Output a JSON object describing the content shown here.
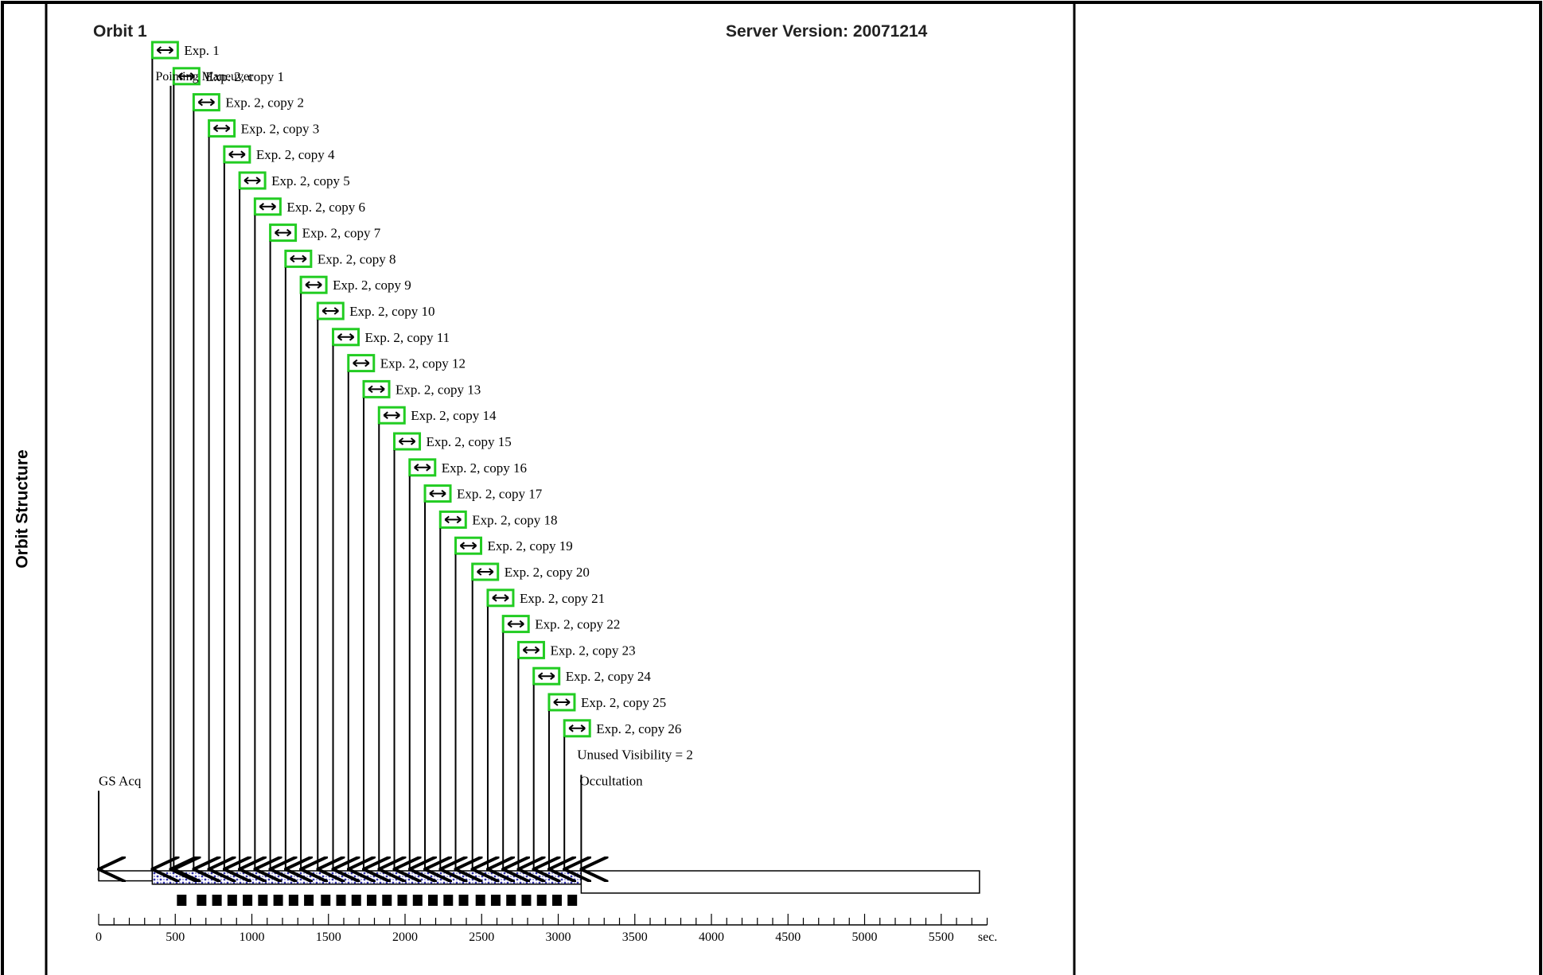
{
  "section_label": "Orbit Structure",
  "orbit_title": "Orbit 1",
  "server_version": "Server Version: 20071214",
  "timeline": {
    "axis_unit": "sec.",
    "axis_max": 5800,
    "ticks_major": [
      0,
      500,
      1000,
      1500,
      2000,
      2500,
      3000,
      3500,
      4000,
      4500,
      5000,
      5500
    ],
    "tick_minor_step": 100,
    "orbit_end": 5750,
    "events": [
      {
        "label": "GS Acq",
        "time": 0
      },
      {
        "label": "Occultation",
        "time": 3150
      }
    ],
    "pointing_maneuver": {
      "label": "Pointing Maneuver",
      "time": 470
    },
    "unused_visibility": "Unused Visibility = 2"
  },
  "exposures": [
    {
      "label": "Exp. 1",
      "start": 350
    },
    {
      "label": "Exp. 2, copy 1",
      "start": 490
    },
    {
      "label": "Exp. 2, copy 2",
      "start": 620
    },
    {
      "label": "Exp. 2, copy 3",
      "start": 720
    },
    {
      "label": "Exp. 2, copy 4",
      "start": 820
    },
    {
      "label": "Exp. 2, copy 5",
      "start": 920
    },
    {
      "label": "Exp. 2, copy 6",
      "start": 1020
    },
    {
      "label": "Exp. 2, copy 7",
      "start": 1120
    },
    {
      "label": "Exp. 2, copy 8",
      "start": 1220
    },
    {
      "label": "Exp. 2, copy 9",
      "start": 1320
    },
    {
      "label": "Exp. 2, copy 10",
      "start": 1430
    },
    {
      "label": "Exp. 2, copy 11",
      "start": 1530
    },
    {
      "label": "Exp. 2, copy 12",
      "start": 1630
    },
    {
      "label": "Exp. 2, copy 13",
      "start": 1730
    },
    {
      "label": "Exp. 2, copy 14",
      "start": 1830
    },
    {
      "label": "Exp. 2, copy 15",
      "start": 1930
    },
    {
      "label": "Exp. 2, copy 16",
      "start": 2030
    },
    {
      "label": "Exp. 2, copy 17",
      "start": 2130
    },
    {
      "label": "Exp. 2, copy 18",
      "start": 2230
    },
    {
      "label": "Exp. 2, copy 19",
      "start": 2330
    },
    {
      "label": "Exp. 2, copy 20",
      "start": 2440
    },
    {
      "label": "Exp. 2, copy 21",
      "start": 2540
    },
    {
      "label": "Exp. 2, copy 22",
      "start": 2640
    },
    {
      "label": "Exp. 2, copy 23",
      "start": 2740
    },
    {
      "label": "Exp. 2, copy 24",
      "start": 2840
    },
    {
      "label": "Exp. 2, copy 25",
      "start": 2940
    },
    {
      "label": "Exp. 2, copy 26",
      "start": 3040
    }
  ],
  "colors": {
    "exposure_box": "#22cc22",
    "fill_dots": "#3333aa",
    "line": "#000000"
  },
  "icons": {
    "exposure": "double-arrow-icon"
  }
}
